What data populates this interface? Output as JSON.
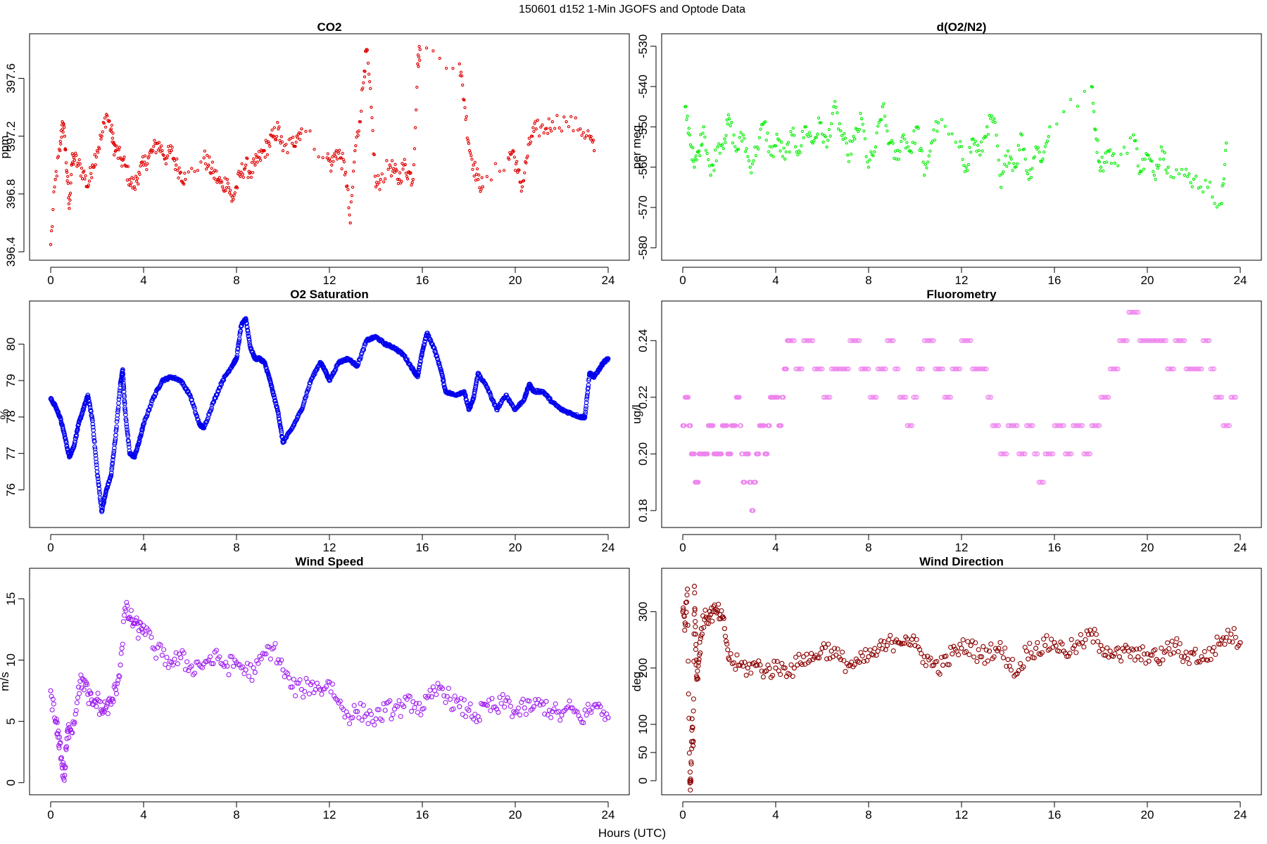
{
  "figure": {
    "suptitle": "150601   d152   1-Min  JGOFS and Optode Data",
    "xlabel": "Hours (UTC)"
  },
  "chart_data": [
    {
      "type": "scatter",
      "title": "CO2",
      "ylabel": "ppm",
      "color": "#e00000",
      "marker_r": 1.6,
      "xlim": [
        0,
        24
      ],
      "ylim": [
        396.4,
        397.85
      ],
      "xticks": [
        0,
        4,
        8,
        12,
        16,
        20,
        24
      ],
      "yticks": [
        396.4,
        396.8,
        397.2,
        397.6
      ],
      "x": [
        0.0,
        0.2,
        0.4,
        0.5,
        0.6,
        0.7,
        0.8,
        0.9,
        1.0,
        1.2,
        1.4,
        1.6,
        1.8,
        2.0,
        2.2,
        2.4,
        2.6,
        2.7,
        2.8,
        3.0,
        3.2,
        3.4,
        3.6,
        3.8,
        4.0,
        4.2,
        4.4,
        4.6,
        4.8,
        5.0,
        5.2,
        5.4,
        5.6,
        5.8,
        6.6,
        6.8,
        7.0,
        7.2,
        7.4,
        7.6,
        7.8,
        8.0,
        8.2,
        8.4,
        8.6,
        8.8,
        9.0,
        9.2,
        9.4,
        9.6,
        9.8,
        10.0,
        10.4,
        10.6,
        10.8,
        11.9,
        12.1,
        12.3,
        12.5,
        12.7,
        12.9,
        13.1,
        13.3,
        13.5,
        13.6,
        13.8,
        14.0,
        14.2,
        14.6,
        14.8,
        15.0,
        15.2,
        15.4,
        15.6,
        15.8,
        15.9,
        17.6,
        17.8,
        18.0,
        18.2,
        18.4,
        18.6,
        19.7,
        19.9,
        20.1,
        20.3,
        20.5,
        20.7,
        20.9,
        21.3,
        21.6,
        22.2,
        22.8,
        23.2,
        23.4
      ],
      "y": [
        396.45,
        396.9,
        397.1,
        397.3,
        397.2,
        396.95,
        396.7,
        397.0,
        397.05,
        397.0,
        396.95,
        396.85,
        397.0,
        397.1,
        397.2,
        397.35,
        397.25,
        397.15,
        397.1,
        397.05,
        397.0,
        396.9,
        396.85,
        396.95,
        397.0,
        397.05,
        397.1,
        397.15,
        397.1,
        397.05,
        397.1,
        397.0,
        396.95,
        396.9,
        397.05,
        397.0,
        396.95,
        396.9,
        396.85,
        396.9,
        396.75,
        396.85,
        396.95,
        397.0,
        396.95,
        397.0,
        397.05,
        397.1,
        397.15,
        397.2,
        397.25,
        397.1,
        397.15,
        397.2,
        397.25,
        397.05,
        397.0,
        397.1,
        397.05,
        396.95,
        396.6,
        397.1,
        397.3,
        397.65,
        397.8,
        397.4,
        396.85,
        396.9,
        397.0,
        396.95,
        396.9,
        397.0,
        396.95,
        396.9,
        397.7,
        397.8,
        397.7,
        397.45,
        397.15,
        397.0,
        396.9,
        396.85,
        397.05,
        397.1,
        396.95,
        396.85,
        397.05,
        397.2,
        397.25,
        397.25,
        397.3,
        397.3,
        397.25,
        397.2,
        397.1
      ]
    },
    {
      "type": "scatter",
      "title": "d(O2/N2)",
      "ylabel": "per meg",
      "color": "#00ee00",
      "marker_r": 1.6,
      "xlim": [
        0,
        24
      ],
      "ylim": [
        -581,
        -529
      ],
      "xticks": [
        0,
        4,
        8,
        12,
        16,
        20,
        24
      ],
      "yticks": [
        -530,
        -540,
        -550,
        -560,
        -570,
        -580
      ],
      "x": [
        0.1,
        0.3,
        0.5,
        0.7,
        0.9,
        1.2,
        1.5,
        1.8,
        2.0,
        2.3,
        2.6,
        2.9,
        3.2,
        3.5,
        3.8,
        4.1,
        4.4,
        4.7,
        5.0,
        5.3,
        5.6,
        5.9,
        6.2,
        6.5,
        6.8,
        7.1,
        7.4,
        7.7,
        8.0,
        8.3,
        8.6,
        8.9,
        9.2,
        9.5,
        9.8,
        10.1,
        10.4,
        10.7,
        11.0,
        11.9,
        12.2,
        12.5,
        12.8,
        13.1,
        13.4,
        13.7,
        14.0,
        14.3,
        14.6,
        14.9,
        15.2,
        15.5,
        15.8,
        17.6,
        17.8,
        18.0,
        18.3,
        18.6,
        19.4,
        19.7,
        20.0,
        20.3,
        20.6,
        20.9,
        21.6,
        22.0,
        22.6,
        23.2,
        23.4
      ],
      "y": [
        -545,
        -552,
        -560,
        -556,
        -550,
        -562,
        -555,
        -553,
        -548,
        -556,
        -552,
        -560,
        -555,
        -549,
        -557,
        -553,
        -558,
        -552,
        -556,
        -550,
        -554,
        -549,
        -555,
        -545,
        -551,
        -557,
        -553,
        -548,
        -560,
        -555,
        -545,
        -554,
        -558,
        -552,
        -556,
        -550,
        -562,
        -554,
        -549,
        -555,
        -560,
        -553,
        -557,
        -550,
        -548,
        -565,
        -556,
        -560,
        -552,
        -563,
        -555,
        -558,
        -550,
        -540,
        -553,
        -560,
        -556,
        -559,
        -552,
        -561,
        -557,
        -562,
        -555,
        -560,
        -562,
        -563,
        -565,
        -569,
        -554
      ]
    },
    {
      "type": "scatter",
      "title": "O2 Saturation",
      "ylabel": "%",
      "color": "#0000ee",
      "marker_r": 2.8,
      "dense": true,
      "xlim": [
        0,
        24
      ],
      "ylim": [
        75.2,
        80.95
      ],
      "xticks": [
        0,
        4,
        8,
        12,
        16,
        20,
        24
      ],
      "yticks": [
        76,
        77,
        78,
        79,
        80
      ],
      "x": [
        0.0,
        0.2,
        0.4,
        0.6,
        0.8,
        1.0,
        1.2,
        1.4,
        1.6,
        1.8,
        2.0,
        2.2,
        2.4,
        2.6,
        2.8,
        3.0,
        3.1,
        3.2,
        3.4,
        3.6,
        3.8,
        4.0,
        4.4,
        4.8,
        5.2,
        5.6,
        6.0,
        6.4,
        6.6,
        7.0,
        7.4,
        7.8,
        8.0,
        8.2,
        8.4,
        8.6,
        8.8,
        9.0,
        9.2,
        9.4,
        9.6,
        9.8,
        10.0,
        10.4,
        10.8,
        11.2,
        11.6,
        11.8,
        12.0,
        12.4,
        12.8,
        13.2,
        13.6,
        14.0,
        14.4,
        14.8,
        15.2,
        15.6,
        15.8,
        16.0,
        16.2,
        16.5,
        16.8,
        17.0,
        17.4,
        17.8,
        18.0,
        18.2,
        18.4,
        18.8,
        19.2,
        19.6,
        20.0,
        20.4,
        20.6,
        20.8,
        21.2,
        21.6,
        22.0,
        22.4,
        22.8,
        23.0,
        23.2,
        23.4,
        23.6,
        23.8,
        24.0
      ],
      "y": [
        78.5,
        78.3,
        78.0,
        77.5,
        76.9,
        77.2,
        77.8,
        78.2,
        78.6,
        77.9,
        76.5,
        75.4,
        76.0,
        76.4,
        77.5,
        78.9,
        79.3,
        78.2,
        77.0,
        76.9,
        77.3,
        77.8,
        78.5,
        79.0,
        79.1,
        79.0,
        78.6,
        77.8,
        77.7,
        78.4,
        79.0,
        79.4,
        79.6,
        80.5,
        80.7,
        79.9,
        79.6,
        79.6,
        79.5,
        79.1,
        78.6,
        78.1,
        77.3,
        77.7,
        78.2,
        79.0,
        79.5,
        79.3,
        79.0,
        79.5,
        79.6,
        79.4,
        80.1,
        80.2,
        80.0,
        79.9,
        79.7,
        79.3,
        79.1,
        79.8,
        80.3,
        79.9,
        79.3,
        78.7,
        78.6,
        78.7,
        78.2,
        78.5,
        79.2,
        78.8,
        78.2,
        78.6,
        78.2,
        78.5,
        78.9,
        78.7,
        78.7,
        78.4,
        78.2,
        78.1,
        78.0,
        78.0,
        79.2,
        79.1,
        79.3,
        79.5,
        79.6
      ]
    },
    {
      "type": "scatter",
      "title": "Fluorometry",
      "ylabel": "ug/l",
      "color": "#ee82ee",
      "marker_r": 2.8,
      "xlim": [
        0,
        24
      ],
      "ylim": [
        0.177,
        0.251
      ],
      "xticks": [
        0,
        4,
        8,
        12,
        16,
        20,
        24
      ],
      "yticks": [
        0.18,
        0.2,
        0.22,
        0.24
      ],
      "x": [
        0.0,
        0.2,
        0.4,
        0.6,
        0.8,
        1.0,
        1.2,
        1.4,
        1.6,
        1.8,
        2.0,
        2.2,
        2.4,
        2.6,
        2.8,
        3.0,
        3.2,
        3.4,
        3.6,
        3.8,
        4.0,
        4.2,
        4.4,
        4.6,
        5.0,
        5.4,
        5.8,
        6.2,
        6.6,
        7.0,
        7.4,
        7.8,
        8.2,
        8.6,
        9.0,
        9.4,
        9.8,
        10.2,
        10.6,
        11.0,
        11.4,
        11.8,
        12.2,
        12.6,
        13.0,
        13.4,
        13.8,
        14.2,
        14.6,
        15.0,
        15.4,
        15.8,
        16.2,
        16.6,
        17.0,
        17.4,
        17.8,
        18.2,
        18.6,
        19.0,
        19.4,
        19.8,
        20.2,
        20.6,
        21.0,
        21.4,
        21.8,
        22.2,
        22.6,
        23.0,
        23.4,
        23.8
      ],
      "y": [
        0.21,
        0.22,
        0.2,
        0.19,
        0.2,
        0.2,
        0.21,
        0.2,
        0.2,
        0.21,
        0.2,
        0.21,
        0.22,
        0.19,
        0.2,
        0.18,
        0.2,
        0.21,
        0.2,
        0.22,
        0.22,
        0.21,
        0.23,
        0.24,
        0.23,
        0.24,
        0.23,
        0.22,
        0.23,
        0.23,
        0.24,
        0.23,
        0.22,
        0.23,
        0.24,
        0.22,
        0.21,
        0.23,
        0.24,
        0.23,
        0.22,
        0.23,
        0.24,
        0.23,
        0.23,
        0.21,
        0.2,
        0.21,
        0.2,
        0.21,
        0.19,
        0.2,
        0.21,
        0.2,
        0.21,
        0.2,
        0.21,
        0.22,
        0.23,
        0.24,
        0.25,
        0.24,
        0.24,
        0.24,
        0.23,
        0.24,
        0.23,
        0.23,
        0.24,
        0.22,
        0.21,
        0.22
      ]
    },
    {
      "type": "scatter",
      "title": "Wind Speed",
      "ylabel": "m/s",
      "color": "#a020f0",
      "marker_r": 3.0,
      "xlim": [
        0,
        24
      ],
      "ylim": [
        -0.3,
        16.8
      ],
      "xticks": [
        0,
        4,
        8,
        12,
        16,
        20,
        24
      ],
      "yticks": [
        0,
        5,
        10,
        15
      ],
      "x": [
        0.0,
        0.2,
        0.3,
        0.4,
        0.5,
        0.6,
        0.7,
        0.8,
        1.0,
        1.2,
        1.4,
        1.6,
        1.8,
        2.0,
        2.2,
        2.4,
        2.6,
        2.8,
        3.0,
        3.2,
        3.4,
        3.6,
        3.8,
        4.0,
        4.4,
        4.8,
        5.2,
        5.6,
        6.0,
        6.4,
        6.8,
        7.2,
        7.6,
        8.0,
        8.4,
        8.8,
        9.2,
        9.6,
        10.0,
        10.4,
        10.8,
        11.2,
        11.6,
        12.0,
        12.4,
        12.8,
        13.2,
        13.6,
        14.0,
        14.4,
        14.8,
        15.2,
        15.6,
        16.0,
        16.4,
        16.8,
        17.2,
        17.6,
        18.0,
        18.4,
        18.8,
        19.2,
        19.6,
        20.0,
        20.4,
        20.8,
        21.2,
        21.6,
        22.0,
        22.4,
        22.8,
        23.2,
        23.6,
        24.0
      ],
      "y": [
        7.5,
        5.0,
        4.0,
        3.2,
        1.2,
        0.6,
        3.6,
        4.5,
        4.8,
        7.8,
        8.4,
        7.2,
        6.4,
        6.8,
        5.8,
        6.2,
        6.4,
        7.6,
        9.6,
        14.2,
        13.5,
        13.0,
        12.4,
        12.8,
        11.0,
        10.4,
        9.8,
        10.2,
        9.4,
        9.6,
        10.0,
        10.1,
        9.5,
        9.8,
        9.2,
        9.0,
        10.5,
        11.0,
        9.2,
        7.8,
        7.6,
        8.0,
        7.6,
        8.2,
        6.5,
        5.5,
        5.8,
        5.6,
        5.2,
        5.9,
        6.0,
        6.2,
        6.6,
        6.0,
        7.0,
        7.8,
        6.8,
        6.2,
        5.9,
        5.4,
        6.3,
        6.0,
        6.7,
        5.7,
        6.1,
        6.2,
        6.4,
        5.8,
        5.5,
        6.1,
        5.2,
        5.9,
        6.4,
        5.3
      ]
    },
    {
      "type": "scatter",
      "title": "Wind Direction",
      "ylabel": "deg",
      "color": "#8b0000",
      "marker_r": 3.0,
      "xlim": [
        0,
        24
      ],
      "ylim": [
        -10,
        362
      ],
      "xticks": [
        0,
        4,
        8,
        12,
        16,
        20,
        24
      ],
      "yticks": [
        0,
        50,
        100,
        200,
        300
      ],
      "x": [
        0.0,
        0.1,
        0.2,
        0.3,
        0.35,
        0.4,
        0.45,
        0.5,
        0.55,
        0.6,
        0.7,
        0.8,
        1.0,
        1.2,
        1.4,
        1.6,
        1.8,
        2.0,
        2.4,
        2.8,
        3.2,
        3.6,
        4.0,
        4.4,
        4.8,
        5.2,
        5.6,
        6.0,
        6.4,
        6.8,
        7.2,
        7.6,
        8.0,
        8.4,
        8.8,
        9.2,
        9.6,
        10.0,
        10.4,
        10.8,
        11.2,
        11.6,
        12.0,
        12.4,
        12.8,
        13.2,
        13.6,
        14.0,
        14.4,
        14.8,
        15.2,
        15.6,
        16.0,
        16.4,
        16.8,
        17.2,
        17.6,
        18.0,
        18.4,
        18.8,
        19.2,
        19.6,
        20.0,
        20.4,
        20.8,
        21.2,
        21.6,
        22.0,
        22.4,
        22.8,
        23.2,
        23.6,
        24.0
      ],
      "y": [
        300,
        280,
        340,
        0,
        0,
        110,
        70,
        345,
        260,
        180,
        215,
        270,
        290,
        295,
        300,
        295,
        270,
        215,
        205,
        200,
        205,
        195,
        200,
        200,
        200,
        220,
        215,
        235,
        230,
        215,
        205,
        210,
        220,
        230,
        240,
        250,
        255,
        240,
        220,
        205,
        205,
        225,
        235,
        240,
        220,
        230,
        235,
        215,
        190,
        230,
        235,
        240,
        245,
        230,
        235,
        245,
        260,
        240,
        230,
        220,
        230,
        220,
        225,
        215,
        230,
        240,
        220,
        225,
        215,
        230,
        250,
        260,
        245
      ]
    }
  ]
}
